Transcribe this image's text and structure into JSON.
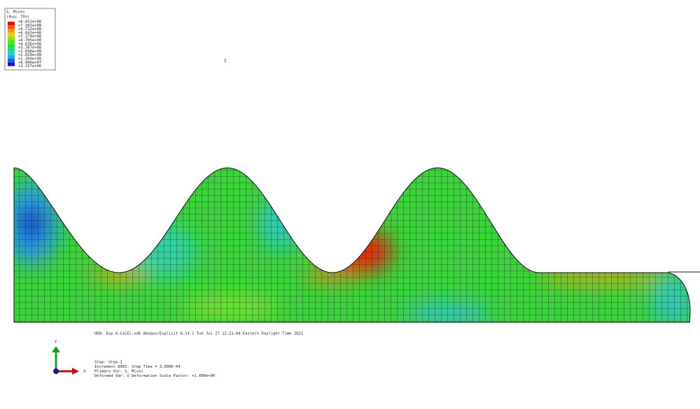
{
  "legend": {
    "title": "S, Mises",
    "subtitle": "(Avg: 75%)",
    "values": [
      "+8.051e+08",
      "+7.381e+08",
      "+6.712e+08",
      "+6.043e+08",
      "+5.374e+08",
      "+4.705e+08",
      "+4.036e+08",
      "+3.367e+08",
      "+2.698e+08",
      "+2.029e+08",
      "+1.360e+08",
      "+6.906e+07",
      "+2.157e+06"
    ]
  },
  "triad": {
    "y": "Y",
    "x": "X",
    "z": "Z"
  },
  "info": {
    "odb": "ODB: Exp-4-CalEl.odb    Abaqus/Explicit 6.14-1    Tue Jul 27 12:21:04 Eastern Daylight Time 2021",
    "lines": [
      "Step: Step-1",
      "Increment    8965: Step Time =    3.000E-04",
      "Primary Var: S, Mises",
      "Deformed Var: U   Deformation Scale Factor: +1.000e+00"
    ]
  }
}
